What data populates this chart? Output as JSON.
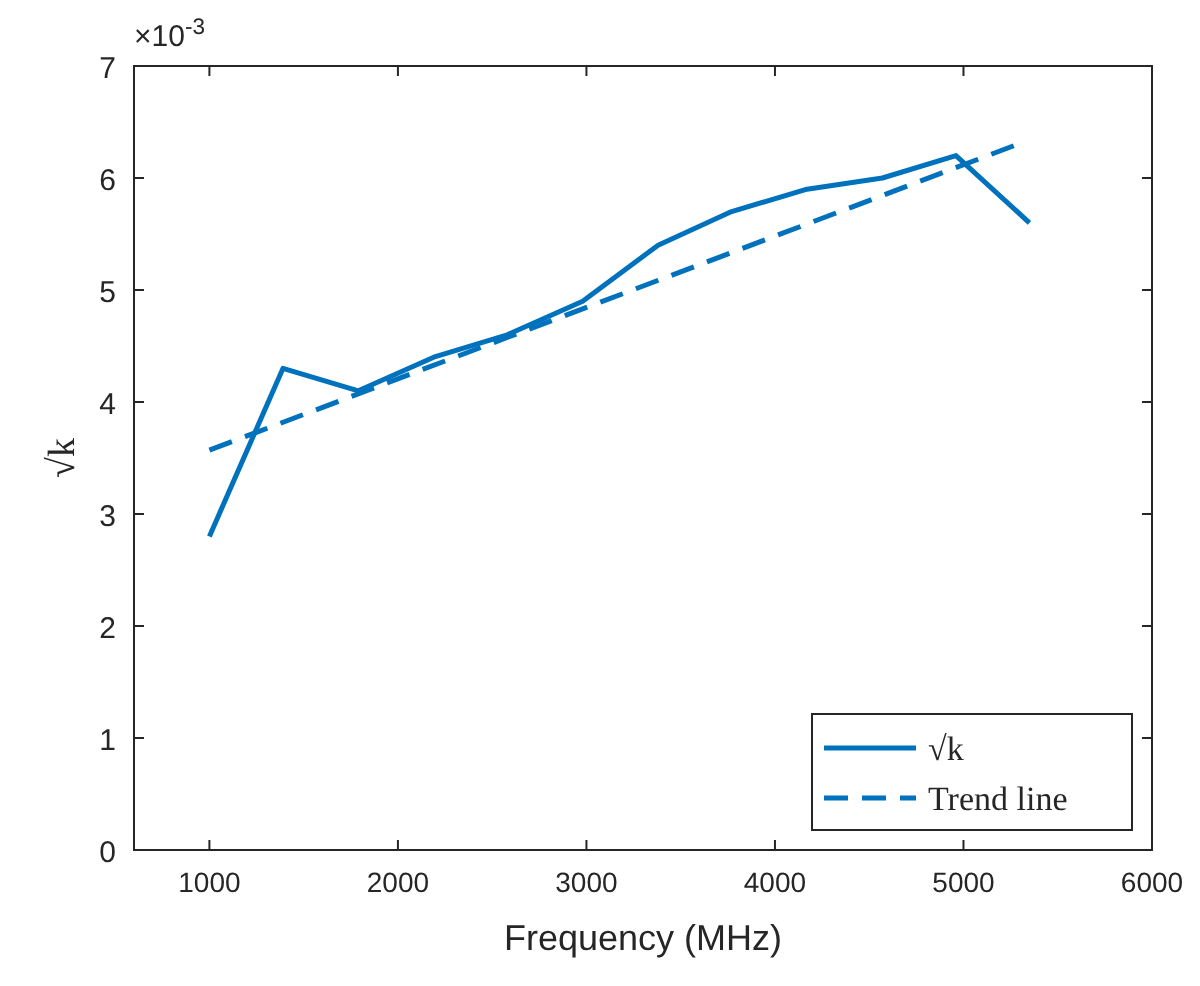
{
  "chart_data": {
    "type": "line",
    "xlabel": "Frequency (MHz)",
    "ylabel": "√k",
    "annotations": [
      "×10$^{-3}$"
    ],
    "xlim": [
      600,
      6000
    ],
    "xticks": [
      1000,
      2000,
      3000,
      4000,
      5000,
      6000
    ],
    "ylim": [
      0,
      7
    ],
    "yticks": [
      0,
      1,
      2,
      3,
      4,
      5,
      6,
      7
    ],
    "legend": "bottom right",
    "grid": false,
    "series": [
      {
        "name": "√k",
        "color": "#0072bd",
        "line_style": "solid",
        "x": [
          1000,
          1390,
          1790,
          2190,
          2580,
          2980,
          3380,
          3770,
          4170,
          4570,
          4960,
          5350
        ],
        "values": [
          2.8,
          4.3,
          4.1,
          4.4,
          4.6,
          4.9,
          5.4,
          5.7,
          5.9,
          6.0,
          6.2,
          5.6
        ]
      },
      {
        "name": "Trend line",
        "color": "#0072bd",
        "line_style": "dashed",
        "x": [
          1000,
          5270
        ],
        "values": [
          3.57,
          6.29
        ]
      }
    ]
  }
}
